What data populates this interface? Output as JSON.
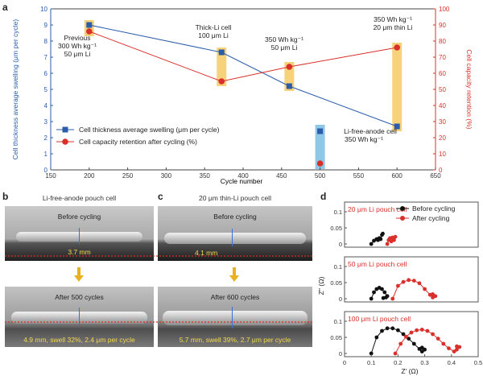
{
  "panels": {
    "a": "a",
    "b": "b",
    "c": "c",
    "d": "d"
  },
  "colors": {
    "blue": "#2a5caa",
    "red": "#d9302b",
    "highlight": "#f6d27a",
    "highlight_blue": "#8fc7e6",
    "yellow_text": "#f5d94a"
  },
  "chart_data": [
    {
      "type": "scatter",
      "panel": "a",
      "xlabel": "Cycle number",
      "ylabel": "Cell thickness average swelling (μm per cycle)",
      "y2label": "Cell capacity retention (%)",
      "xlim": [
        150,
        650
      ],
      "ylim": [
        0,
        10
      ],
      "y2lim": [
        0,
        100
      ],
      "xticks": [
        "150",
        "200",
        "250",
        "300",
        "350",
        "400",
        "450",
        "500",
        "550",
        "600",
        "650"
      ],
      "yticks": [
        "0",
        "1",
        "2",
        "3",
        "4",
        "5",
        "6",
        "7",
        "8",
        "9",
        "10"
      ],
      "y2ticks": [
        "0",
        "10",
        "20",
        "30",
        "40",
        "50",
        "60",
        "70",
        "80",
        "90",
        "100"
      ],
      "series": [
        {
          "name": "Cell thickness average swelling (μm per cycle)",
          "axis": "left",
          "x": [
            200,
            372,
            460,
            600
          ],
          "values": [
            9.0,
            7.3,
            5.2,
            2.7
          ]
        },
        {
          "name": "Cell capacity retention after cycling (%)",
          "axis": "right",
          "x": [
            200,
            372,
            460,
            600
          ],
          "values": [
            86,
            55,
            64,
            76
          ]
        }
      ],
      "isolated": {
        "x": 500,
        "swelling": 2.4,
        "retention": 4
      },
      "annotations": [
        {
          "lines": [
            "Previous",
            "300 Wh kg⁻¹",
            "50 μm Li"
          ]
        },
        {
          "lines": [
            "Thick-Li cell",
            "100 μm Li"
          ]
        },
        {
          "lines": [
            "350 Wh kg⁻¹",
            "50 μm Li"
          ]
        },
        {
          "lines": [
            "350 Wh kg⁻¹",
            "20 μm thin Li"
          ]
        },
        {
          "lines": [
            "Li-free-anode cell",
            "350 Wh kg⁻¹"
          ]
        }
      ]
    },
    {
      "type": "line",
      "panel": "d",
      "xlabel": "Z' (Ω)",
      "ylabel": "Z'' (Ω)",
      "xlim": [
        0,
        0.5
      ],
      "xticks": [
        "0",
        "0.1",
        "0.2",
        "0.3",
        "0.4",
        "0.5"
      ],
      "legend": [
        "Before cycling",
        "After cycling"
      ],
      "subplots": [
        {
          "title": "20 μm Li pouch cell",
          "yticks": [
            "0.1",
            "0.05",
            "0"
          ],
          "ylim": [
            0,
            0.12
          ],
          "before": {
            "x": [
              0.1,
              0.11,
              0.12,
              0.125,
              0.13,
              0.135,
              0.14,
              0.143
            ],
            "y": [
              0.0,
              0.01,
              0.015,
              0.012,
              0.018,
              0.015,
              0.028,
              0.032
            ]
          },
          "after": {
            "x": [
              0.16,
              0.165,
              0.17,
              0.175,
              0.18,
              0.185,
              0.19
            ],
            "y": [
              0.0,
              0.012,
              0.018,
              0.008,
              0.02,
              0.012,
              0.022
            ]
          }
        },
        {
          "title": "50 μm Li pouch cell",
          "yticks": [
            "0.1",
            "0.05",
            "0"
          ],
          "ylim": [
            0,
            0.12
          ],
          "before": {
            "x": [
              0.1,
              0.11,
              0.12,
              0.13,
              0.14,
              0.15,
              0.16,
              0.155,
              0.145
            ],
            "y": [
              0.0,
              0.02,
              0.03,
              0.034,
              0.03,
              0.02,
              0.008,
              0.004,
              0.002
            ]
          },
          "after": {
            "x": [
              0.18,
              0.2,
              0.22,
              0.24,
              0.26,
              0.28,
              0.3,
              0.32,
              0.33,
              0.34,
              0.33
            ],
            "y": [
              0.0,
              0.04,
              0.052,
              0.058,
              0.056,
              0.048,
              0.03,
              0.012,
              0.004,
              0.008,
              0.014
            ]
          }
        },
        {
          "title": "100 μm Li pouch cell",
          "yticks": [
            "0.1",
            "0.05",
            "0"
          ],
          "ylim": [
            0,
            0.12
          ],
          "before": {
            "x": [
              0.1,
              0.12,
              0.14,
              0.16,
              0.18,
              0.2,
              0.22,
              0.24,
              0.26,
              0.28,
              0.29,
              0.3,
              0.29
            ],
            "y": [
              0.0,
              0.05,
              0.07,
              0.078,
              0.078,
              0.072,
              0.06,
              0.046,
              0.03,
              0.014,
              0.006,
              0.012,
              0.018
            ]
          },
          "after": {
            "x": [
              0.19,
              0.21,
              0.23,
              0.25,
              0.27,
              0.29,
              0.31,
              0.33,
              0.35,
              0.37,
              0.39,
              0.41,
              0.42,
              0.43,
              0.42
            ],
            "y": [
              0.0,
              0.03,
              0.052,
              0.065,
              0.072,
              0.074,
              0.07,
              0.06,
              0.046,
              0.03,
              0.016,
              0.006,
              0.012,
              0.02,
              0.022
            ]
          }
        }
      ]
    }
  ],
  "panel_b": {
    "title": "Li-free-anode pouch cell",
    "before_label": "Before cycling",
    "before_measure": "3.7 mm",
    "after_label": "After 500 cycles",
    "after_caption": "4.9 mm, swell 32%, 2.4 μm per cycle"
  },
  "panel_c": {
    "title": "20 μm thin-Li pouch cell",
    "before_label": "Before cycling",
    "before_measure": "4.1 mm",
    "after_label": "After 600 cycles",
    "after_caption": "5.7 mm, swell 39%, 2.7 μm per cycle"
  }
}
